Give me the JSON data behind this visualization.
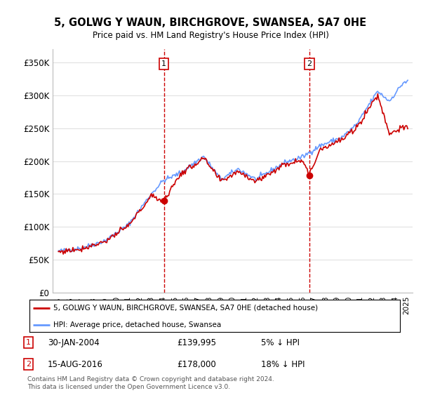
{
  "title": "5, GOLWG Y WAUN, BIRCHGROVE, SWANSEA, SA7 0HE",
  "subtitle": "Price paid vs. HM Land Registry's House Price Index (HPI)",
  "legend_line1": "5, GOLWG Y WAUN, BIRCHGROVE, SWANSEA, SA7 0HE (detached house)",
  "legend_line2": "HPI: Average price, detached house, Swansea",
  "footnote": "Contains HM Land Registry data © Crown copyright and database right 2024.\nThis data is licensed under the Open Government Licence v3.0.",
  "annotation1": {
    "label": "1",
    "date": "30-JAN-2004",
    "price": "£139,995",
    "pct": "5% ↓ HPI"
  },
  "annotation2": {
    "label": "2",
    "date": "15-AUG-2016",
    "price": "£178,000",
    "pct": "18% ↓ HPI"
  },
  "hpi_color": "#6699ff",
  "price_color": "#cc0000",
  "annotation_color": "#cc0000",
  "ylim": [
    0,
    370000
  ],
  "yticks": [
    0,
    50000,
    100000,
    150000,
    200000,
    250000,
    300000,
    350000
  ],
  "ytick_labels": [
    "£0",
    "£50K",
    "£100K",
    "£150K",
    "£200K",
    "£250K",
    "£300K",
    "£350K"
  ],
  "vline1_x": 2004.08,
  "vline2_x": 2016.62,
  "marker1_y": 139995,
  "marker2_y": 178000,
  "xlim": [
    1994.5,
    2025.5
  ],
  "xtick_start": 1995,
  "xtick_end": 2025,
  "hpi_waypoints_x": [
    1995.0,
    1997.0,
    1999.0,
    2001.0,
    2003.0,
    2004.0,
    2005.5,
    2007.5,
    2009.0,
    2010.5,
    2012.0,
    2014.5,
    2016.0,
    2017.5,
    2019.5,
    2020.75,
    2021.75,
    2022.5,
    2023.5,
    2024.75
  ],
  "hpi_waypoints_y": [
    63000,
    68000,
    79000,
    103000,
    150000,
    170000,
    182000,
    207000,
    172000,
    188000,
    172000,
    198000,
    206000,
    223000,
    237000,
    257000,
    286000,
    306000,
    291000,
    320000
  ],
  "price_waypoints_x": [
    1995.0,
    1997.0,
    1999.0,
    2001.0,
    2003.0,
    2004.08,
    2005.5,
    2007.5,
    2009.0,
    2010.5,
    2012.0,
    2014.5,
    2016.0,
    2016.62,
    2017.5,
    2019.5,
    2020.75,
    2021.75,
    2022.5,
    2023.5,
    2024.5
  ],
  "price_waypoints_y": [
    62000,
    67000,
    78000,
    101000,
    147000,
    139995,
    180000,
    204000,
    169000,
    185000,
    169000,
    195000,
    203000,
    178000,
    218000,
    233000,
    252000,
    281000,
    300000,
    242000,
    250000
  ]
}
